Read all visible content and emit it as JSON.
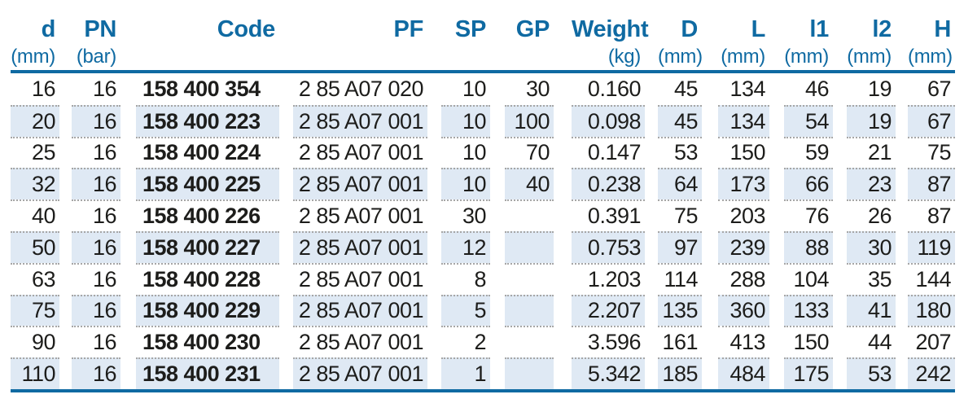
{
  "table": {
    "columns": [
      {
        "id": "d",
        "label": "d",
        "unit": "(mm)"
      },
      {
        "id": "pn",
        "label": "PN",
        "unit": "(bar)"
      },
      {
        "id": "code",
        "label": "Code",
        "unit": ""
      },
      {
        "id": "pf",
        "label": "PF",
        "unit": ""
      },
      {
        "id": "sp",
        "label": "SP",
        "unit": ""
      },
      {
        "id": "gp",
        "label": "GP",
        "unit": ""
      },
      {
        "id": "weight",
        "label": "Weight",
        "unit": "(kg)"
      },
      {
        "id": "D",
        "label": "D",
        "unit": "(mm)"
      },
      {
        "id": "L",
        "label": "L",
        "unit": "(mm)"
      },
      {
        "id": "l1",
        "label": "l1",
        "unit": "(mm)"
      },
      {
        "id": "l2",
        "label": "l2",
        "unit": "(mm)"
      },
      {
        "id": "H",
        "label": "H",
        "unit": "(mm)"
      }
    ],
    "rows": [
      [
        "16",
        "16",
        "158 400 354",
        "2 85 A07 020",
        "10",
        "30",
        "0.160",
        "45",
        "134",
        "46",
        "19",
        "67"
      ],
      [
        "20",
        "16",
        "158 400 223",
        "2 85 A07 001",
        "10",
        "100",
        "0.098",
        "45",
        "134",
        "54",
        "19",
        "67"
      ],
      [
        "25",
        "16",
        "158 400 224",
        "2 85 A07 001",
        "10",
        "70",
        "0.147",
        "53",
        "150",
        "59",
        "21",
        "75"
      ],
      [
        "32",
        "16",
        "158 400 225",
        "2 85 A07 001",
        "10",
        "40",
        "0.238",
        "64",
        "173",
        "66",
        "23",
        "87"
      ],
      [
        "40",
        "16",
        "158 400 226",
        "2 85 A07 001",
        "30",
        "",
        "0.391",
        "75",
        "203",
        "76",
        "26",
        "87"
      ],
      [
        "50",
        "16",
        "158 400 227",
        "2 85 A07 001",
        "12",
        "",
        "0.753",
        "97",
        "239",
        "88",
        "30",
        "119"
      ],
      [
        "63",
        "16",
        "158 400 228",
        "2 85 A07 001",
        "8",
        "",
        "1.203",
        "114",
        "288",
        "104",
        "35",
        "144"
      ],
      [
        "75",
        "16",
        "158 400 229",
        "2 85 A07 001",
        "5",
        "",
        "2.207",
        "135",
        "360",
        "133",
        "41",
        "180"
      ],
      [
        "90",
        "16",
        "158 400 230",
        "2 85 A07 001",
        "2",
        "",
        "3.596",
        "161",
        "413",
        "150",
        "44",
        "207"
      ],
      [
        "110",
        "16",
        "158 400 231",
        "2 85 A07 001",
        "1",
        "",
        "5.342",
        "185",
        "484",
        "175",
        "53",
        "242"
      ]
    ],
    "shaded_row_indices": [
      1,
      3,
      5,
      7,
      9
    ],
    "colors": {
      "accent_blue": "#0f6aa2",
      "row_shade": "#dfe9f4",
      "text": "#1d1d1b",
      "dotted_separator": "#a6a6a6"
    }
  }
}
